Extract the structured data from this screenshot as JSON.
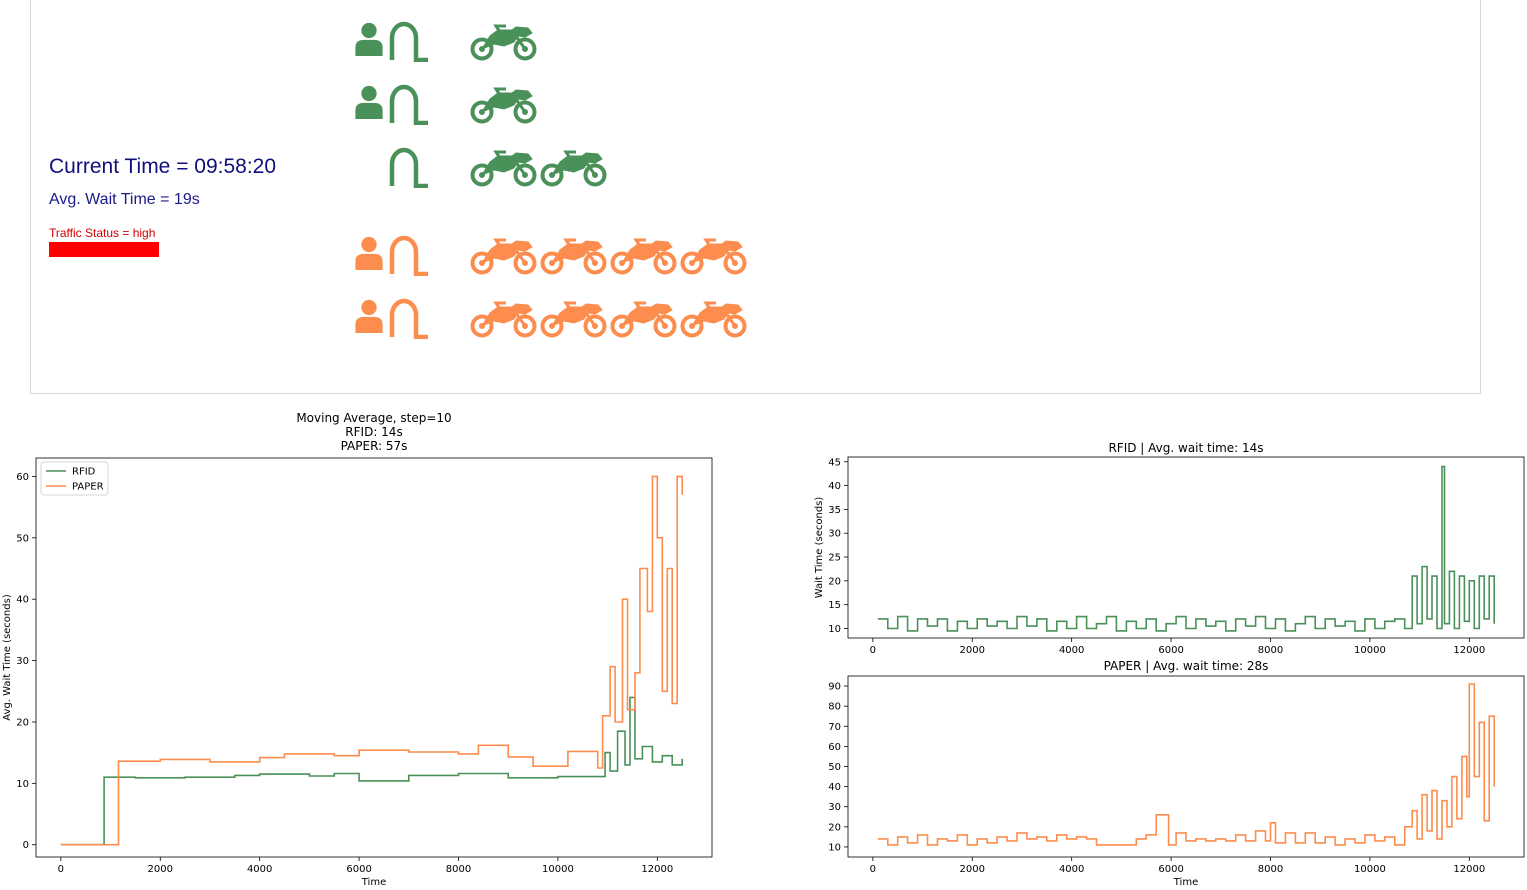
{
  "dashboard": {
    "current_time_text": "Current Time = 09:58:20",
    "avg_wait_text": "Avg. Wait Time = 19s",
    "traffic_status_text": "Traffic Status = high",
    "traffic_status_color": "#ff0000"
  },
  "lanes": [
    {
      "type": "rfid",
      "color": "#4a9159",
      "operator": true,
      "vehicles": 1
    },
    {
      "type": "rfid",
      "color": "#4a9159",
      "operator": true,
      "vehicles": 1
    },
    {
      "type": "rfid",
      "color": "#4a9159",
      "operator": false,
      "vehicles": 2
    },
    {
      "type": "paper",
      "color": "#fc8d4e",
      "operator": true,
      "vehicles": 4
    },
    {
      "type": "paper",
      "color": "#fc8d4e",
      "operator": true,
      "vehicles": 4
    }
  ],
  "icons": {
    "operator": "person-icon",
    "gate": "gate-icon",
    "vehicle": "motorcycle-icon"
  },
  "chart_data": [
    {
      "type": "line",
      "title": [
        "Moving Average, step=10",
        "RFID: 14s",
        "PAPER: 57s"
      ],
      "xlabel": "Time",
      "ylabel": "Avg. Wait Time (seconds)",
      "xlim": [
        -500,
        13100
      ],
      "ylim": [
        -2,
        63
      ],
      "xticks": [
        0,
        2000,
        4000,
        6000,
        8000,
        10000,
        12000
      ],
      "yticks": [
        0,
        10,
        20,
        30,
        40,
        50,
        60
      ],
      "legend": "top-left",
      "series": [
        {
          "name": "RFID",
          "color": "#4a9159",
          "x": [
            0,
            860,
            870,
            1500,
            2500,
            3500,
            4000,
            5000,
            5500,
            6000,
            7000,
            8000,
            9000,
            10000,
            10800,
            10950,
            11050,
            11200,
            11350,
            11450,
            11550,
            11700,
            11900,
            12100,
            12300,
            12500
          ],
          "y": [
            0,
            0,
            11,
            10.9,
            11,
            11.3,
            11.5,
            11.2,
            11.6,
            10.4,
            11.3,
            11.6,
            10.9,
            11.1,
            11.1,
            15,
            12,
            18.5,
            13,
            24,
            14,
            16,
            13.5,
            14.5,
            13,
            14
          ]
        },
        {
          "name": "PAPER",
          "color": "#fc8d4e",
          "x": [
            0,
            1150,
            1160,
            2000,
            3000,
            4000,
            4500,
            5500,
            6000,
            7000,
            8000,
            8400,
            9000,
            9500,
            10200,
            10800,
            10900,
            11050,
            11150,
            11300,
            11400,
            11550,
            11650,
            11800,
            11900,
            12000,
            12100,
            12200,
            12300,
            12400,
            12500
          ],
          "y": [
            0,
            0,
            13.6,
            13.9,
            13.5,
            14.2,
            14.8,
            14.5,
            15.4,
            15.1,
            14.8,
            16.2,
            14.3,
            12.8,
            15.2,
            12.5,
            21,
            29,
            20,
            40,
            22,
            28,
            45,
            38,
            60,
            50,
            25,
            45,
            23,
            60,
            57
          ]
        }
      ]
    },
    {
      "type": "line",
      "title": "RFID | Avg. wait time: 14s",
      "xlabel": "",
      "ylabel": "Wait Time (seconds)",
      "xlim": [
        -500,
        13100
      ],
      "ylim": [
        8,
        46
      ],
      "xticks": [
        0,
        2000,
        4000,
        6000,
        8000,
        10000,
        12000
      ],
      "yticks": [
        10,
        15,
        20,
        25,
        30,
        35,
        40,
        45
      ],
      "series": [
        {
          "name": "RFID",
          "color": "#4a9159",
          "x": [
            100,
            300,
            500,
            700,
            900,
            1100,
            1300,
            1500,
            1700,
            1900,
            2100,
            2300,
            2500,
            2700,
            2900,
            3100,
            3300,
            3500,
            3700,
            3900,
            4100,
            4300,
            4500,
            4700,
            4900,
            5100,
            5300,
            5500,
            5700,
            5900,
            6100,
            6300,
            6500,
            6700,
            6900,
            7100,
            7300,
            7500,
            7700,
            7900,
            8100,
            8300,
            8500,
            8700,
            8900,
            9100,
            9300,
            9500,
            9700,
            9900,
            10100,
            10300,
            10500,
            10700,
            10850,
            10950,
            11050,
            11150,
            11250,
            11350,
            11450,
            11500,
            11600,
            11700,
            11800,
            11900,
            12000,
            12100,
            12200,
            12300,
            12400,
            12500
          ],
          "y": [
            12,
            10,
            12.5,
            9.5,
            12,
            10.5,
            12,
            9.5,
            11.5,
            10,
            12,
            10.5,
            11.5,
            10,
            12.5,
            10.5,
            12,
            9.5,
            11.5,
            10,
            12.5,
            10,
            11,
            12.5,
            9.5,
            11.5,
            10,
            12,
            9.5,
            11,
            12.5,
            10,
            12,
            10.5,
            11.5,
            9.5,
            12,
            10.5,
            12.5,
            10,
            12,
            9.5,
            11,
            12.5,
            10,
            12,
            10.5,
            11.5,
            9.5,
            12,
            10,
            11.5,
            12,
            10,
            21,
            11,
            23,
            12,
            21,
            10,
            44,
            11,
            22,
            10,
            21,
            11.5,
            20,
            10,
            21,
            12,
            21,
            11
          ]
        }
      ]
    },
    {
      "type": "line",
      "title": "PAPER | Avg. wait time: 28s",
      "xlabel": "Time",
      "ylabel": "",
      "xlim": [
        -500,
        13100
      ],
      "ylim": [
        5,
        95
      ],
      "xticks": [
        0,
        2000,
        4000,
        6000,
        8000,
        10000,
        12000
      ],
      "yticks": [
        10,
        20,
        30,
        40,
        50,
        60,
        70,
        80,
        90
      ],
      "series": [
        {
          "name": "PAPER",
          "color": "#fc8d4e",
          "x": [
            100,
            300,
            500,
            700,
            900,
            1100,
            1300,
            1500,
            1700,
            1900,
            2100,
            2300,
            2500,
            2700,
            2900,
            3100,
            3300,
            3500,
            3700,
            3900,
            4100,
            4300,
            4500,
            4700,
            4900,
            5100,
            5300,
            5500,
            5700,
            5800,
            5950,
            6100,
            6300,
            6500,
            6700,
            6900,
            7100,
            7300,
            7500,
            7700,
            7900,
            8000,
            8100,
            8300,
            8500,
            8700,
            8900,
            9100,
            9300,
            9500,
            9700,
            9900,
            10100,
            10300,
            10500,
            10700,
            10850,
            10950,
            11050,
            11150,
            11250,
            11350,
            11450,
            11550,
            11650,
            11750,
            11850,
            11950,
            12000,
            12100,
            12200,
            12300,
            12400,
            12500
          ],
          "y": [
            14,
            11,
            15,
            12,
            16,
            11,
            14,
            13,
            16,
            11,
            14,
            12,
            15,
            13,
            17,
            14,
            15,
            13,
            16,
            14,
            15,
            14,
            11,
            11,
            11,
            11,
            14,
            16,
            26,
            26,
            11,
            17,
            13,
            14,
            13,
            14,
            13,
            16,
            13,
            18,
            13,
            22,
            12,
            17,
            12,
            17,
            12,
            15,
            11,
            14,
            12,
            16,
            13,
            15,
            11,
            20,
            28,
            14,
            36,
            18,
            38,
            14,
            33,
            20,
            45,
            24,
            55,
            35,
            91,
            45,
            72,
            23,
            75,
            40
          ]
        }
      ]
    }
  ]
}
